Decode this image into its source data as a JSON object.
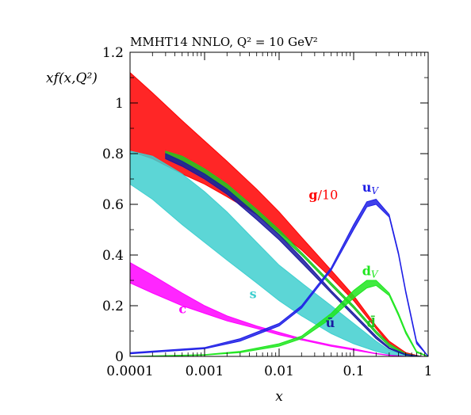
{
  "chart_data": {
    "type": "area",
    "title": "MMHT14 NNLO, Q² = 10 GeV²",
    "xlabel": "x",
    "ylabel": "xf(x,Q²)",
    "xscale": "log",
    "xlim": [
      0.0001,
      1
    ],
    "ylim": [
      0,
      1.2
    ],
    "x_ticks": [
      "0.0001",
      "0.001",
      "0.01",
      "0.1",
      "1"
    ],
    "y_ticks": [
      "0",
      "0.2",
      "0.4",
      "0.6",
      "0.8",
      "1",
      "1.2"
    ],
    "series": [
      {
        "name": "g/10",
        "color": "#ff0000",
        "style": "band",
        "x": [
          0.0001,
          0.0002,
          0.0005,
          0.001,
          0.002,
          0.005,
          0.01,
          0.02,
          0.05,
          0.1,
          0.2,
          0.3,
          0.5,
          0.8,
          1.0
        ],
        "low": [
          0.81,
          0.78,
          0.72,
          0.68,
          0.63,
          0.56,
          0.49,
          0.42,
          0.31,
          0.22,
          0.11,
          0.05,
          0.01,
          0.0,
          0.0
        ],
        "high": [
          1.12,
          1.04,
          0.93,
          0.85,
          0.77,
          0.66,
          0.57,
          0.47,
          0.34,
          0.24,
          0.12,
          0.06,
          0.015,
          0.0,
          0.0
        ]
      },
      {
        "name": "s",
        "color": "#3fcfcf",
        "style": "band",
        "x": [
          0.0001,
          0.0002,
          0.0005,
          0.001,
          0.002,
          0.005,
          0.01,
          0.02,
          0.05,
          0.1,
          0.2,
          0.3,
          0.5,
          0.8,
          1.0
        ],
        "low": [
          0.68,
          0.62,
          0.52,
          0.45,
          0.38,
          0.29,
          0.22,
          0.16,
          0.09,
          0.05,
          0.02,
          0.008,
          0.0,
          0.0,
          0.0
        ],
        "high": [
          0.81,
          0.79,
          0.72,
          0.65,
          0.57,
          0.45,
          0.36,
          0.29,
          0.2,
          0.13,
          0.06,
          0.025,
          0.005,
          0.0,
          0.0
        ]
      },
      {
        "name": "d̄",
        "color": "#1ec81e",
        "style": "band",
        "x": [
          0.0003,
          0.0005,
          0.001,
          0.002,
          0.005,
          0.01,
          0.02,
          0.05,
          0.1,
          0.2,
          0.3,
          0.5,
          0.8,
          1.0
        ],
        "low": [
          0.79,
          0.76,
          0.71,
          0.65,
          0.56,
          0.48,
          0.4,
          0.28,
          0.19,
          0.09,
          0.04,
          0.008,
          0.0,
          0.0
        ],
        "high": [
          0.81,
          0.79,
          0.74,
          0.68,
          0.58,
          0.5,
          0.41,
          0.29,
          0.2,
          0.1,
          0.05,
          0.01,
          0.0,
          0.0
        ]
      },
      {
        "name": "ū",
        "color": "#1a1aa0",
        "style": "band",
        "x": [
          0.0003,
          0.0005,
          0.001,
          0.002,
          0.005,
          0.01,
          0.02,
          0.05,
          0.1,
          0.2,
          0.3,
          0.5,
          0.8,
          1.0
        ],
        "low": [
          0.78,
          0.75,
          0.7,
          0.64,
          0.54,
          0.46,
          0.37,
          0.25,
          0.16,
          0.07,
          0.03,
          0.005,
          0.0,
          0.0
        ],
        "high": [
          0.8,
          0.77,
          0.72,
          0.66,
          0.56,
          0.48,
          0.39,
          0.26,
          0.17,
          0.08,
          0.035,
          0.008,
          0.0,
          0.0
        ]
      },
      {
        "name": "c",
        "color": "#ff00ff",
        "style": "band",
        "x": [
          0.0001,
          0.0002,
          0.0005,
          0.001,
          0.002,
          0.005,
          0.01,
          0.02,
          0.05,
          0.1,
          0.2,
          0.3,
          0.5,
          1.0
        ],
        "low": [
          0.29,
          0.25,
          0.2,
          0.17,
          0.14,
          0.11,
          0.085,
          0.065,
          0.04,
          0.025,
          0.01,
          0.004,
          0.0,
          0.0
        ],
        "high": [
          0.37,
          0.32,
          0.25,
          0.2,
          0.16,
          0.12,
          0.095,
          0.07,
          0.045,
          0.03,
          0.012,
          0.005,
          0.0,
          0.0
        ]
      },
      {
        "name": "dV",
        "color": "#1ee61e",
        "style": "band",
        "x": [
          0.0001,
          0.001,
          0.003,
          0.01,
          0.02,
          0.05,
          0.1,
          0.15,
          0.2,
          0.3,
          0.4,
          0.5,
          0.7,
          1.0
        ],
        "low": [
          0.0,
          0.005,
          0.015,
          0.04,
          0.07,
          0.15,
          0.23,
          0.27,
          0.28,
          0.24,
          0.16,
          0.09,
          0.015,
          0.0
        ],
        "high": [
          0.0,
          0.007,
          0.02,
          0.05,
          0.08,
          0.17,
          0.26,
          0.3,
          0.3,
          0.25,
          0.17,
          0.1,
          0.02,
          0.0
        ]
      },
      {
        "name": "uV",
        "color": "#1e1ee6",
        "style": "band",
        "x": [
          0.0001,
          0.001,
          0.003,
          0.01,
          0.02,
          0.05,
          0.1,
          0.15,
          0.2,
          0.3,
          0.4,
          0.5,
          0.7,
          1.0
        ],
        "low": [
          0.01,
          0.03,
          0.06,
          0.12,
          0.19,
          0.34,
          0.5,
          0.59,
          0.6,
          0.55,
          0.4,
          0.25,
          0.05,
          0.0
        ],
        "high": [
          0.015,
          0.035,
          0.07,
          0.13,
          0.2,
          0.35,
          0.52,
          0.61,
          0.62,
          0.56,
          0.41,
          0.26,
          0.06,
          0.0
        ]
      }
    ],
    "labels": [
      {
        "text": "g",
        "suffix": "/10",
        "color": "#ff0000",
        "x": 0.025,
        "y": 0.62
      },
      {
        "text": "s",
        "suffix": "",
        "color": "#3fcfcf",
        "x": 0.004,
        "y": 0.23
      },
      {
        "text": "c",
        "suffix": "",
        "color": "#ff00ff",
        "x": 0.00045,
        "y": 0.17
      },
      {
        "text": "ū",
        "suffix": "",
        "color": "#1a1aa0",
        "x": 0.042,
        "y": 0.115
      },
      {
        "text": "d̄",
        "suffix": "",
        "color": "#1ec81e",
        "x": 0.15,
        "y": 0.115
      },
      {
        "text": "u",
        "suffix": "V",
        "color": "#1e1ee6",
        "x": 0.13,
        "y": 0.65
      },
      {
        "text": "d",
        "suffix": "V",
        "color": "#1ee61e",
        "x": 0.13,
        "y": 0.32
      }
    ]
  }
}
